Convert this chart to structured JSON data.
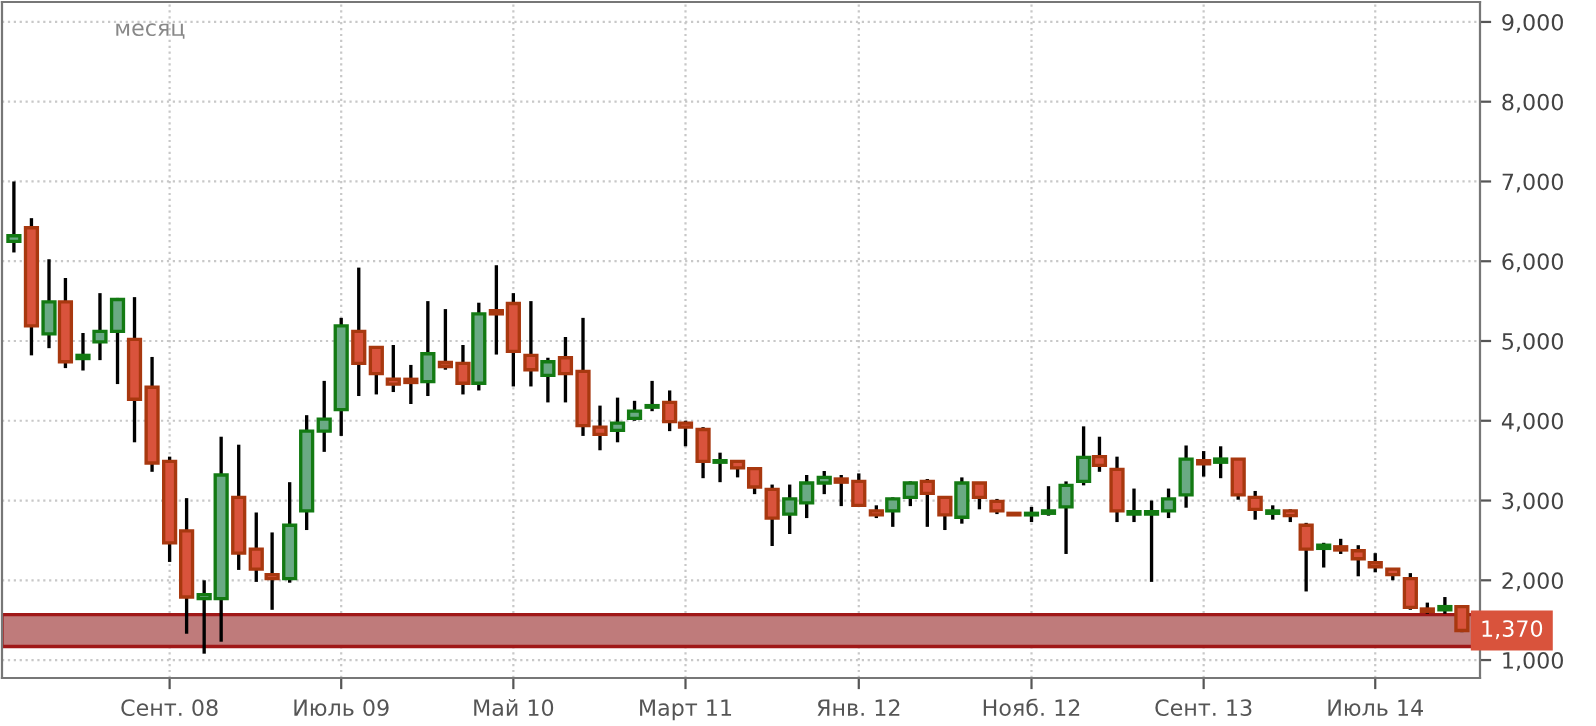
{
  "chart_data": {
    "type": "candlestick",
    "subtitle": "месяц",
    "x": [
      "2007-12",
      "2008-01",
      "2008-02",
      "2008-03",
      "2008-04",
      "2008-05",
      "2008-06",
      "2008-07",
      "2008-08",
      "2008-09",
      "2008-10",
      "2008-11",
      "2008-12",
      "2009-01",
      "2009-02",
      "2009-03",
      "2009-04",
      "2009-05",
      "2009-06",
      "2009-07",
      "2009-08",
      "2009-09",
      "2009-10",
      "2009-11",
      "2009-12",
      "2010-01",
      "2010-02",
      "2010-03",
      "2010-04",
      "2010-05",
      "2010-06",
      "2010-07",
      "2010-08",
      "2010-09",
      "2010-10",
      "2010-11",
      "2010-12",
      "2011-01",
      "2011-02",
      "2011-03",
      "2011-04",
      "2011-05",
      "2011-06",
      "2011-07",
      "2011-08",
      "2011-09",
      "2011-10",
      "2011-11",
      "2011-12",
      "2012-01",
      "2012-02",
      "2012-03",
      "2012-04",
      "2012-05",
      "2012-06",
      "2012-07",
      "2012-08",
      "2012-09",
      "2012-10",
      "2012-11",
      "2012-12",
      "2013-01",
      "2013-02",
      "2013-03",
      "2013-04",
      "2013-05",
      "2013-06",
      "2013-07",
      "2013-08",
      "2013-09",
      "2013-10",
      "2013-11",
      "2013-12",
      "2014-01",
      "2014-02",
      "2014-03",
      "2014-04",
      "2014-05",
      "2014-06",
      "2014-07",
      "2014-08",
      "2014-09",
      "2014-10",
      "2014-11",
      "2014-12"
    ],
    "ohlc": [
      [
        6250,
        7000,
        6110,
        6320
      ],
      [
        6420,
        6540,
        4820,
        5190
      ],
      [
        5090,
        6025,
        4910,
        5490
      ],
      [
        5490,
        5790,
        4660,
        4740
      ],
      [
        4780,
        5100,
        4630,
        4820
      ],
      [
        4990,
        5600,
        4760,
        5120
      ],
      [
        5120,
        5540,
        4460,
        5520
      ],
      [
        5020,
        5550,
        3730,
        4270
      ],
      [
        4420,
        4800,
        3360,
        3470
      ],
      [
        3490,
        3550,
        2230,
        2470
      ],
      [
        2620,
        3030,
        1330,
        1790
      ],
      [
        1770,
        2000,
        1080,
        1820
      ],
      [
        1770,
        3800,
        1230,
        3320
      ],
      [
        3040,
        3700,
        2130,
        2340
      ],
      [
        2390,
        2850,
        1980,
        2140
      ],
      [
        2070,
        2600,
        1630,
        2020
      ],
      [
        2020,
        3230,
        1970,
        2690
      ],
      [
        2870,
        4070,
        2630,
        3870
      ],
      [
        3870,
        4500,
        3610,
        4020
      ],
      [
        4140,
        5290,
        3810,
        5190
      ],
      [
        5120,
        5920,
        4310,
        4720
      ],
      [
        4920,
        4920,
        4330,
        4590
      ],
      [
        4520,
        4950,
        4360,
        4460
      ],
      [
        4520,
        4700,
        4210,
        4480
      ],
      [
        4490,
        5500,
        4310,
        4840
      ],
      [
        4730,
        5400,
        4640,
        4680
      ],
      [
        4720,
        4950,
        4330,
        4470
      ],
      [
        4470,
        5480,
        4380,
        5340
      ],
      [
        5380,
        5950,
        4830,
        5340
      ],
      [
        5470,
        5600,
        4430,
        4870
      ],
      [
        4820,
        5500,
        4430,
        4640
      ],
      [
        4570,
        4790,
        4230,
        4740
      ],
      [
        4790,
        5050,
        4230,
        4590
      ],
      [
        4620,
        5290,
        3810,
        3940
      ],
      [
        3920,
        4190,
        3630,
        3830
      ],
      [
        3880,
        4290,
        3730,
        3970
      ],
      [
        4030,
        4250,
        4000,
        4120
      ],
      [
        4170,
        4500,
        4120,
        4190
      ],
      [
        4230,
        4380,
        3870,
        3990
      ],
      [
        3970,
        4000,
        3680,
        3920
      ],
      [
        3890,
        3920,
        3280,
        3490
      ],
      [
        3480,
        3600,
        3230,
        3500
      ],
      [
        3490,
        3490,
        3290,
        3410
      ],
      [
        3400,
        3400,
        3080,
        3170
      ],
      [
        3140,
        3200,
        2430,
        2780
      ],
      [
        2830,
        3200,
        2580,
        3020
      ],
      [
        2970,
        3320,
        2780,
        3220
      ],
      [
        3220,
        3370,
        3080,
        3290
      ],
      [
        3270,
        3320,
        2930,
        3230
      ],
      [
        3240,
        3340,
        2940,
        2940
      ],
      [
        2870,
        2940,
        2780,
        2820
      ],
      [
        2870,
        3040,
        2670,
        3020
      ],
      [
        3040,
        3240,
        2930,
        3220
      ],
      [
        3240,
        3270,
        2670,
        3090
      ],
      [
        3040,
        3040,
        2630,
        2820
      ],
      [
        2790,
        3290,
        2710,
        3220
      ],
      [
        3220,
        3220,
        2890,
        3040
      ],
      [
        2990,
        3020,
        2830,
        2870
      ],
      [
        2840,
        2840,
        2820,
        2820
      ],
      [
        2820,
        2920,
        2730,
        2840
      ],
      [
        2840,
        3180,
        2810,
        2870
      ],
      [
        2920,
        3240,
        2330,
        3190
      ],
      [
        3240,
        3930,
        3190,
        3540
      ],
      [
        3550,
        3800,
        3360,
        3440
      ],
      [
        3390,
        3550,
        2730,
        2870
      ],
      [
        2830,
        3150,
        2730,
        2860
      ],
      [
        2830,
        3000,
        1980,
        2860
      ],
      [
        2870,
        3150,
        2780,
        3020
      ],
      [
        3070,
        3690,
        2910,
        3520
      ],
      [
        3500,
        3620,
        3300,
        3460
      ],
      [
        3480,
        3680,
        3280,
        3520
      ],
      [
        3520,
        3520,
        3010,
        3070
      ],
      [
        3040,
        3120,
        2760,
        2890
      ],
      [
        2840,
        2940,
        2760,
        2870
      ],
      [
        2870,
        2890,
        2730,
        2810
      ],
      [
        2690,
        2720,
        1860,
        2390
      ],
      [
        2400,
        2470,
        2160,
        2440
      ],
      [
        2420,
        2520,
        2330,
        2380
      ],
      [
        2370,
        2440,
        2050,
        2270
      ],
      [
        2220,
        2340,
        2100,
        2170
      ],
      [
        2140,
        2140,
        2000,
        2070
      ],
      [
        2020,
        2090,
        1630,
        1660
      ],
      [
        1640,
        1720,
        1580,
        1610
      ],
      [
        1630,
        1790,
        1580,
        1670
      ],
      [
        1670,
        1690,
        1350,
        1370
      ]
    ],
    "xlim": [
      "2007-11-10",
      "2015-01-02"
    ],
    "xticks": [
      {
        "value": "2008-09",
        "label": "Сент. 08"
      },
      {
        "value": "2009-07",
        "label": "Июль 09"
      },
      {
        "value": "2010-05",
        "label": "Май 10"
      },
      {
        "value": "2011-03",
        "label": "Март 11"
      },
      {
        "value": "2012-01",
        "label": "Янв. 12"
      },
      {
        "value": "2012-11",
        "label": "Нояб. 12"
      },
      {
        "value": "2013-09",
        "label": "Сент. 13"
      },
      {
        "value": "2014-07",
        "label": "Июль 14"
      }
    ],
    "ylim": [
      775,
      9250
    ],
    "yticks": [
      {
        "value": 1000,
        "label": "1,000"
      },
      {
        "value": 2000,
        "label": "2,000"
      },
      {
        "value": 3000,
        "label": "3,000"
      },
      {
        "value": 4000,
        "label": "4,000"
      },
      {
        "value": 5000,
        "label": "5,000"
      },
      {
        "value": 6000,
        "label": "6,000"
      },
      {
        "value": 7000,
        "label": "7,000"
      },
      {
        "value": 8000,
        "label": "8,000"
      },
      {
        "value": 9000,
        "label": "9,000"
      }
    ],
    "grid": true,
    "bands": [
      {
        "axis": "y",
        "from": 1170,
        "to": 1570,
        "color": "#bf7b7b"
      }
    ],
    "annotations": [
      {
        "text": "1,370",
        "x": "2014-12",
        "y": 1370
      }
    ]
  }
}
